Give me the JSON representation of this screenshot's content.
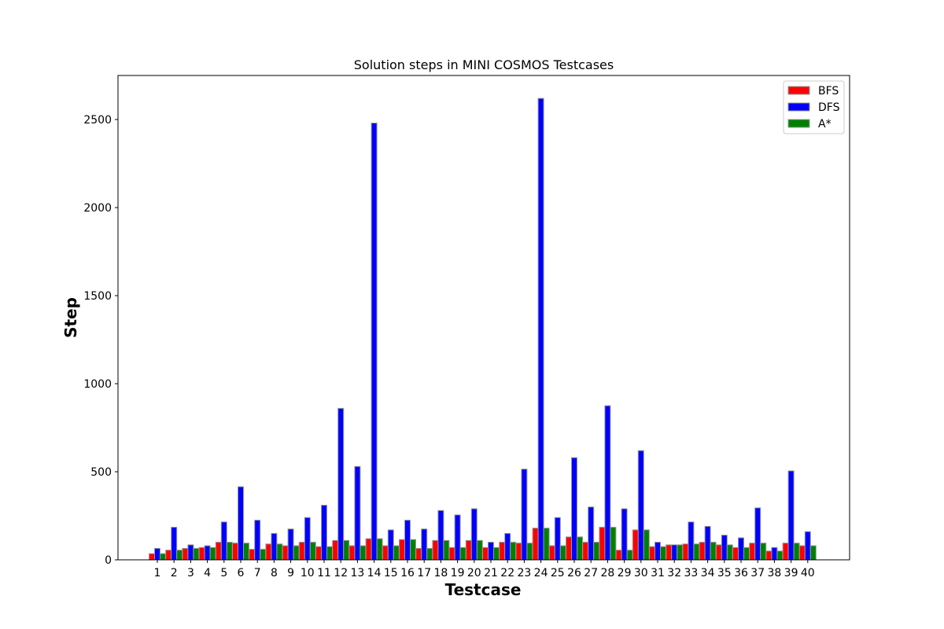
{
  "chart_data": {
    "type": "bar",
    "title": "Solution steps in MINI COSMOS Testcases",
    "xlabel": "Testcase",
    "ylabel": "Step",
    "ylim": [
      0,
      2750
    ],
    "yticks": [
      0,
      500,
      1000,
      1500,
      2000,
      2500
    ],
    "grid": false,
    "legend_position": "top-right",
    "categories": [
      "1",
      "2",
      "3",
      "4",
      "5",
      "6",
      "7",
      "8",
      "9",
      "10",
      "11",
      "12",
      "13",
      "14",
      "15",
      "16",
      "17",
      "18",
      "19",
      "20",
      "21",
      "22",
      "23",
      "24",
      "25",
      "26",
      "27",
      "28",
      "29",
      "30",
      "31",
      "32",
      "33",
      "34",
      "35",
      "36",
      "37",
      "38",
      "39",
      "40"
    ],
    "series": [
      {
        "name": "BFS",
        "color": "#ff0000",
        "values": [
          35,
          55,
          65,
          70,
          100,
          95,
          60,
          90,
          80,
          100,
          75,
          110,
          80,
          120,
          80,
          115,
          65,
          110,
          70,
          110,
          70,
          100,
          95,
          180,
          80,
          130,
          100,
          185,
          55,
          170,
          75,
          85,
          90,
          100,
          85,
          70,
          95,
          50,
          95,
          80
        ]
      },
      {
        "name": "DFS",
        "color": "#0000ff",
        "values": [
          65,
          185,
          85,
          80,
          215,
          415,
          225,
          150,
          175,
          240,
          310,
          860,
          530,
          2480,
          170,
          225,
          175,
          280,
          255,
          290,
          100,
          150,
          515,
          2620,
          240,
          580,
          300,
          875,
          290,
          620,
          100,
          85,
          215,
          190,
          140,
          125,
          295,
          70,
          505,
          160
        ]
      },
      {
        "name": "A*",
        "color": "#008000",
        "values": [
          35,
          55,
          65,
          70,
          100,
          95,
          60,
          90,
          80,
          100,
          75,
          110,
          80,
          120,
          80,
          115,
          65,
          110,
          70,
          110,
          70,
          100,
          95,
          180,
          80,
          130,
          100,
          185,
          55,
          170,
          75,
          85,
          90,
          100,
          85,
          70,
          95,
          50,
          95,
          80
        ]
      }
    ]
  }
}
